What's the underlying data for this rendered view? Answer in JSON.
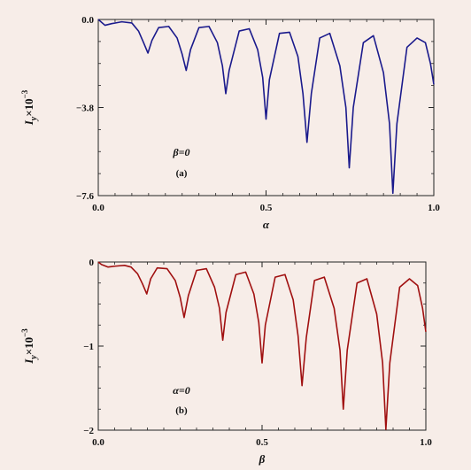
{
  "chart_data": [
    {
      "type": "line",
      "panel_label": "(a)",
      "annotation": "β=0",
      "xlabel": "α",
      "ylabel": "I_y×10^-3",
      "ylabel_base": "I",
      "ylabel_sub": "y",
      "ylabel_times": "×10",
      "ylabel_exp": "−3",
      "xlim": [
        0,
        1
      ],
      "ylim": [
        -7.6,
        0
      ],
      "xticks": [
        "0.0",
        "0.5",
        "1.0"
      ],
      "xtick_values": [
        0,
        0.5,
        1.0
      ],
      "yticks": [
        "0.0",
        "−3.8",
        "−7.6"
      ],
      "ytick_values": [
        0,
        -3.8,
        -7.6
      ],
      "line_color": "#1a1a8c",
      "series": [
        {
          "x": [
            0.0,
            0.02,
            0.04,
            0.07,
            0.1,
            0.12,
            0.135,
            0.148,
            0.16,
            0.18,
            0.21,
            0.235,
            0.25,
            0.262,
            0.275,
            0.3,
            0.33,
            0.355,
            0.37,
            0.38,
            0.39,
            0.42,
            0.45,
            0.475,
            0.49,
            0.5,
            0.51,
            0.54,
            0.57,
            0.595,
            0.61,
            0.622,
            0.635,
            0.66,
            0.69,
            0.72,
            0.738,
            0.748,
            0.76,
            0.79,
            0.82,
            0.85,
            0.868,
            0.878,
            0.89,
            0.92,
            0.95,
            0.975,
            0.99,
            1.0
          ],
          "y": [
            0.0,
            -0.25,
            -0.18,
            -0.1,
            -0.15,
            -0.5,
            -1.0,
            -1.45,
            -0.9,
            -0.35,
            -0.3,
            -0.8,
            -1.5,
            -2.2,
            -1.3,
            -0.35,
            -0.3,
            -1.0,
            -2.0,
            -3.2,
            -2.2,
            -0.5,
            -0.4,
            -1.3,
            -2.5,
            -4.3,
            -2.6,
            -0.6,
            -0.55,
            -1.6,
            -3.2,
            -5.3,
            -3.2,
            -0.8,
            -0.6,
            -2.0,
            -3.8,
            -6.4,
            -3.8,
            -1.0,
            -0.7,
            -2.3,
            -4.5,
            -7.5,
            -4.5,
            -1.2,
            -0.8,
            -1.0,
            -1.9,
            -2.8
          ]
        }
      ]
    },
    {
      "type": "line",
      "panel_label": "(b)",
      "annotation": "α=0",
      "xlabel": "β",
      "ylabel": "I_y×10^-3",
      "ylabel_base": "I",
      "ylabel_sub": "y",
      "ylabel_times": "×10",
      "ylabel_exp": "−3",
      "xlim": [
        0,
        1
      ],
      "ylim": [
        -2,
        0
      ],
      "xticks": [
        "0.0",
        "0.5",
        "1.0"
      ],
      "xtick_values": [
        0,
        0.5,
        1.0
      ],
      "yticks": [
        "0",
        "−1",
        "−2"
      ],
      "ytick_values": [
        0,
        -1,
        -2
      ],
      "line_color": "#a01010",
      "series": [
        {
          "x": [
            0.0,
            0.01,
            0.03,
            0.05,
            0.08,
            0.1,
            0.12,
            0.135,
            0.148,
            0.16,
            0.18,
            0.21,
            0.235,
            0.25,
            0.262,
            0.275,
            0.3,
            0.33,
            0.355,
            0.37,
            0.38,
            0.39,
            0.42,
            0.45,
            0.475,
            0.49,
            0.5,
            0.51,
            0.54,
            0.57,
            0.595,
            0.61,
            0.622,
            0.635,
            0.66,
            0.69,
            0.72,
            0.738,
            0.748,
            0.76,
            0.79,
            0.82,
            0.85,
            0.868,
            0.878,
            0.89,
            0.92,
            0.95,
            0.975,
            0.99,
            1.0
          ],
          "y": [
            0.0,
            -0.03,
            -0.06,
            -0.05,
            -0.04,
            -0.06,
            -0.14,
            -0.26,
            -0.38,
            -0.2,
            -0.07,
            -0.08,
            -0.22,
            -0.42,
            -0.66,
            -0.4,
            -0.1,
            -0.08,
            -0.3,
            -0.55,
            -0.93,
            -0.6,
            -0.15,
            -0.12,
            -0.38,
            -0.72,
            -1.2,
            -0.75,
            -0.18,
            -0.15,
            -0.45,
            -0.88,
            -1.47,
            -0.9,
            -0.22,
            -0.18,
            -0.55,
            -1.05,
            -1.75,
            -1.05,
            -0.25,
            -0.2,
            -0.62,
            -1.2,
            -1.99,
            -1.2,
            -0.3,
            -0.2,
            -0.28,
            -0.55,
            -0.83
          ]
        }
      ]
    }
  ]
}
